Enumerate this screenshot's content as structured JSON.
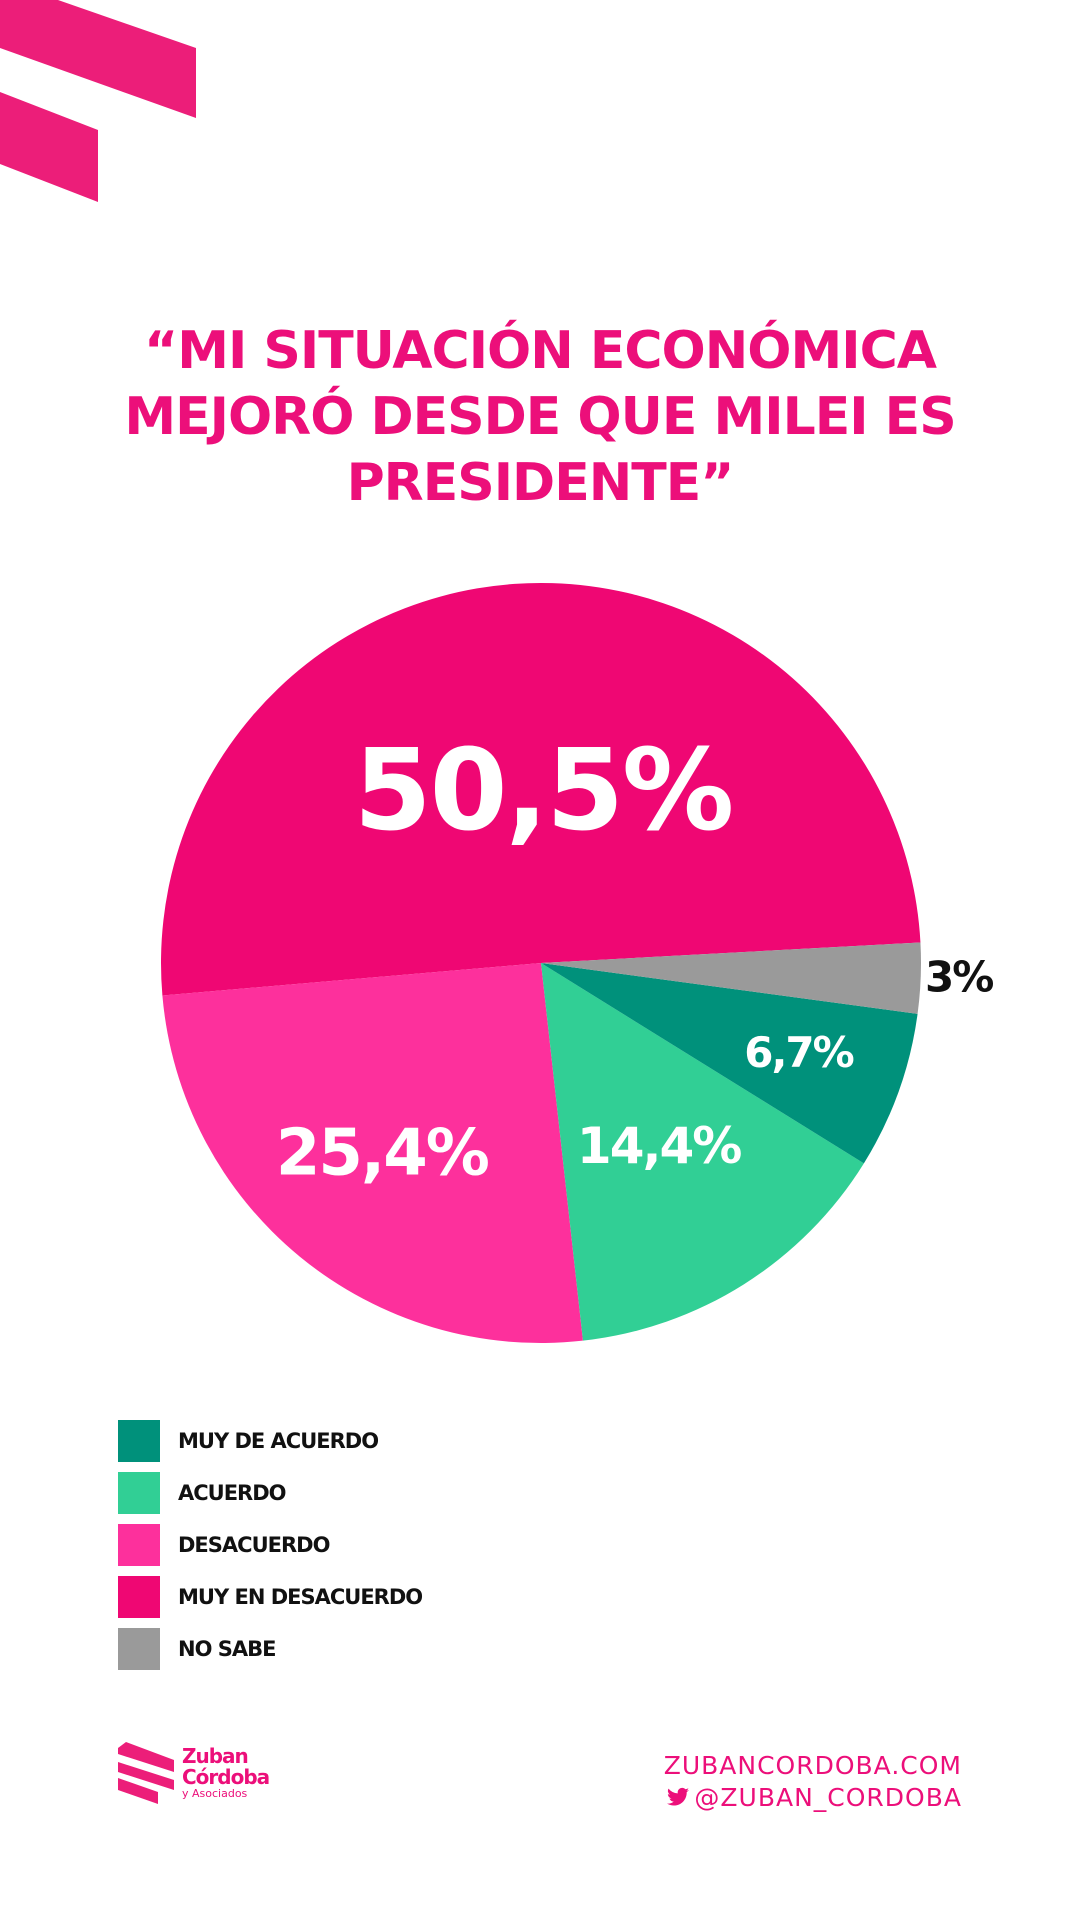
{
  "title_lines": [
    "“MI SITUACIÓN ECONÓMICA",
    "MEJORÓ DESDE QUE MILEI ES",
    "PRESIDENTE”"
  ],
  "chart_data": {
    "type": "pie",
    "slices": [
      {
        "label": "MUY EN DESACUERDO",
        "value": 50.5,
        "value_label": "50,5%",
        "color": "#ef0773"
      },
      {
        "label": "DESACUERDO",
        "value": 25.4,
        "value_label": "25,4%",
        "color": "#fd309c"
      },
      {
        "label": "ACUERDO",
        "value": 14.4,
        "value_label": "14,4%",
        "color": "#31cf95"
      },
      {
        "label": "MUY DE ACUERDO",
        "value": 6.7,
        "value_label": "6,7%",
        "color": "#00917b"
      },
      {
        "label": "NO SABE",
        "value": 3,
        "value_label": "3%",
        "color": "#9a9a9a"
      }
    ]
  },
  "legend": [
    {
      "label": "MUY DE ACUERDO",
      "color": "#00917b"
    },
    {
      "label": "ACUERDO",
      "color": "#31cf95"
    },
    {
      "label": "DESACUERDO",
      "color": "#fd309c"
    },
    {
      "label": "MUY EN DESACUERDO",
      "color": "#ef0773"
    },
    {
      "label": "NO SABE",
      "color": "#9a9a9a"
    }
  ],
  "footer": {
    "logo_line1": "Zuban",
    "logo_line2": "Córdoba",
    "logo_line3": "y Asociados",
    "website": "ZUBANCORDOBA.COM",
    "twitter": "@ZUBAN_CORDOBA"
  },
  "colors": {
    "brand": "#ec0f7a"
  }
}
